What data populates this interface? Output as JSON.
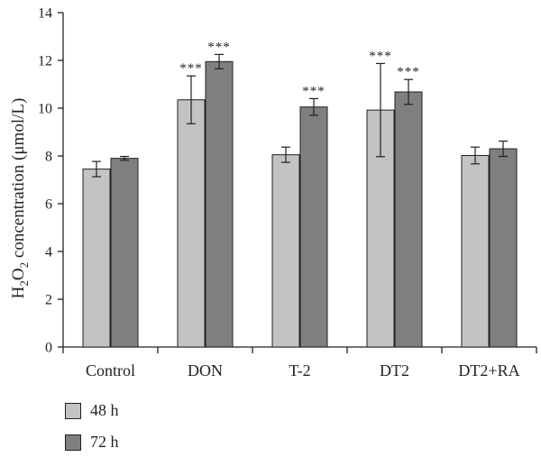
{
  "chart_data": {
    "type": "bar",
    "ylabel_parts": {
      "pre": "H",
      "sub1": "2",
      "mid": "O",
      "sub2": "2",
      "post": " concentration (μmol/L)"
    },
    "ylim": [
      0,
      14
    ],
    "yticks": [
      0,
      2,
      4,
      6,
      8,
      10,
      12,
      14
    ],
    "categories": [
      "Control",
      "DON",
      "T-2",
      "DT2",
      "DT2+RA"
    ],
    "series": [
      {
        "name": "48 h",
        "color": "#c3c3c3",
        "values": [
          7.45,
          10.35,
          8.05,
          9.92,
          8.02
        ],
        "errors": [
          0.32,
          1.0,
          0.32,
          1.95,
          0.35
        ],
        "annotations": [
          "",
          "***",
          "",
          "***",
          ""
        ]
      },
      {
        "name": "72 h",
        "color": "#7f7f7f",
        "values": [
          7.9,
          11.95,
          10.05,
          10.68,
          8.3
        ],
        "errors": [
          0.08,
          0.3,
          0.35,
          0.52,
          0.32
        ],
        "annotations": [
          "",
          "***",
          "***",
          "***",
          ""
        ]
      }
    ],
    "legend_position": "bottom-left",
    "grid": false
  }
}
